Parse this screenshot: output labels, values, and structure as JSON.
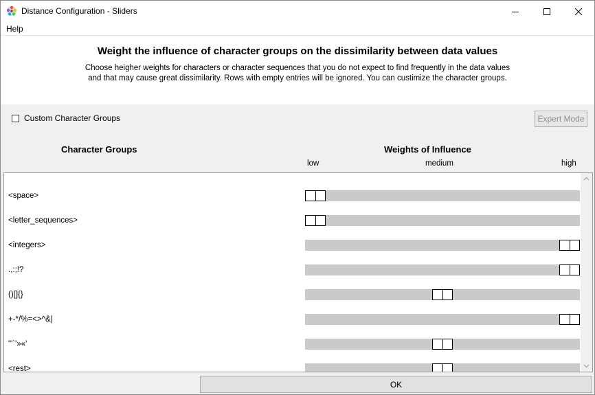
{
  "window": {
    "title": "Distance Configuration - Sliders",
    "icon": "colorful-wheel-icon",
    "controls": [
      "minimize-icon",
      "maximize-icon",
      "close-icon"
    ]
  },
  "menu": {
    "help": "Help"
  },
  "header": {
    "heading": "Weight the influence of character groups on the dissimilarity between data values",
    "description_line1": "Choose heigher weights for characters or character sequences that you do not expect to find frequently in the data values",
    "description_line2": "and that may cause great dissimilarity. Rows with empty entries will be ignored. You can custimize the character groups."
  },
  "options": {
    "custom_groups_label": "Custom Character Groups",
    "custom_groups_checked": false,
    "expert_mode_label": "Expert Mode",
    "expert_mode_enabled": false
  },
  "columns": {
    "groups": "Character Groups",
    "weights": "Weights of Influence",
    "scale_low": "low",
    "scale_medium": "medium",
    "scale_high": "high"
  },
  "rows": [
    {
      "label": "<space>",
      "weight": 0.0
    },
    {
      "label": "<letter_sequences>",
      "weight": 0.0
    },
    {
      "label": "<integers>",
      "weight": 1.0
    },
    {
      "label": ".,:;!?",
      "weight": 1.0
    },
    {
      "label": "()[]{}",
      "weight": 0.5
    },
    {
      "label": "+-*/%=<>^&|",
      "weight": 1.0
    },
    {
      "label": "\"'`'»«'",
      "weight": 0.5
    },
    {
      "label": "<rest>",
      "weight": 0.5
    }
  ],
  "footer": {
    "ok_label": "OK"
  }
}
